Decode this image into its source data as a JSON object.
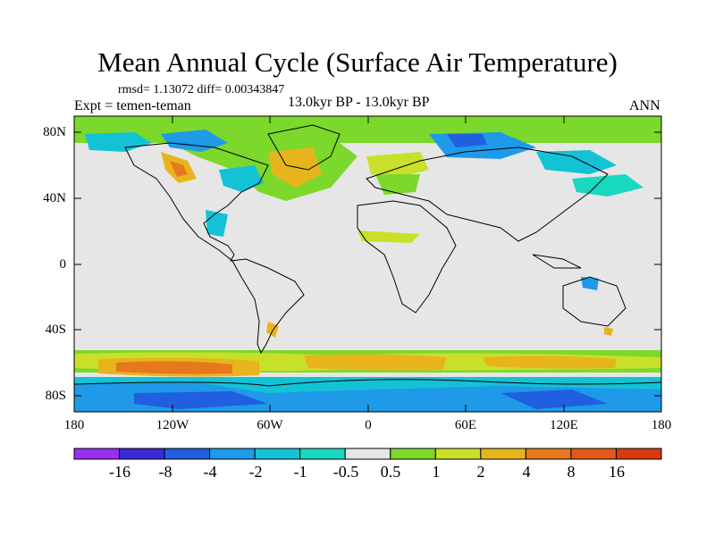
{
  "title": "Mean Annual Cycle (Surface Air Temperature)",
  "stats": "rmsd= 1.13072 diff= 0.00343847",
  "left_label": "Expt = temen-teman",
  "center_label": "13.0kyr BP - 13.0kyr BP",
  "right_label": "ANN",
  "lat_ticks": [
    "80N",
    "40N",
    "0",
    "40S",
    "80S"
  ],
  "lon_ticks": [
    "180",
    "120W",
    "60W",
    "0",
    "60E",
    "120E",
    "180"
  ],
  "colorbar": {
    "labels": [
      "-16",
      "-8",
      "-4",
      "-2",
      "-1",
      "-0.5",
      "0.5",
      "1",
      "2",
      "4",
      "8",
      "16"
    ],
    "colors": [
      "#9a2ff0",
      "#3a2ad6",
      "#1f5fe0",
      "#1e9ae8",
      "#14c2d6",
      "#18d8c0",
      "#e6e6e6",
      "#7cd82a",
      "#c8e02a",
      "#e8b41e",
      "#e6781e",
      "#e25a18",
      "#d83a10"
    ]
  },
  "palette": {
    "neutral": "#e6e6e6",
    "green": "#7cd82a",
    "yellowgreen": "#c8e02a",
    "yellow": "#e8b41e",
    "orange": "#e6781e",
    "cyan": "#14c2d6",
    "teal": "#18d8c0",
    "lightblue": "#1e9ae8",
    "blue": "#1f5fe0"
  }
}
